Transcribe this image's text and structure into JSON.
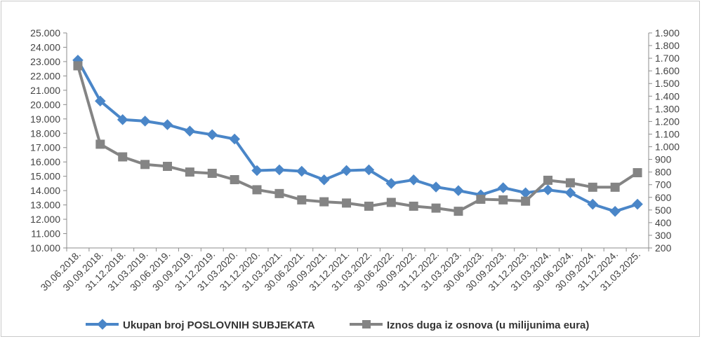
{
  "chart_data": {
    "type": "line",
    "title": "",
    "xlabel": "",
    "x": [
      "30.06.2018.",
      "30.09.2018.",
      "31.12.2018.",
      "31.03.2019.",
      "30.06.2019.",
      "30.09.2019.",
      "31.12.2019.",
      "31.03.2020.",
      "31.12.2020.",
      "31.03.2021.",
      "30.06.2021.",
      "30.09.2021.",
      "31.12.2021.",
      "31.03.2022.",
      "30.06.2022.",
      "30.09.2022.",
      "31.12.2022.",
      "31.03.2023.",
      "30.06.2023.",
      "30.09.2023.",
      "31.12.2023.",
      "31.03.2024.",
      "30.06.2024.",
      "30.09.2024.",
      "31.12.2024.",
      "31.03.2025."
    ],
    "y_left": {
      "ylim": [
        10000,
        25000
      ],
      "ticks": [
        "10.000",
        "11.000",
        "12.000",
        "13.000",
        "14.000",
        "15.000",
        "16.000",
        "17.000",
        "18.000",
        "19.000",
        "20.000",
        "21.000",
        "22.000",
        "23.000",
        "24.000",
        "25.000"
      ]
    },
    "y_right": {
      "ylim": [
        200,
        1900
      ],
      "ticks": [
        "200",
        "300",
        "400",
        "500",
        "600",
        "700",
        "800",
        "900",
        "1.000",
        "1.100",
        "1.200",
        "1.300",
        "1.400",
        "1.500",
        "1.600",
        "1.700",
        "1.800",
        "1.900"
      ]
    },
    "series": [
      {
        "name": "Ukupan broj POSLOVNIH SUBJEKATA",
        "axis": "left",
        "color": "#4a86c8",
        "marker": "diamond",
        "values": [
          23100,
          20250,
          18950,
          18850,
          18600,
          18150,
          17900,
          17600,
          15400,
          15450,
          15350,
          14750,
          15400,
          15450,
          14500,
          14750,
          14250,
          14000,
          13700,
          14200,
          13850,
          14050,
          13850,
          13050,
          12550,
          13050
        ]
      },
      {
        "name": "Iznos duga iz osnova (u milijunima eura)",
        "axis": "right",
        "color": "#848484",
        "marker": "square",
        "values": [
          1640,
          1020,
          920,
          860,
          845,
          800,
          790,
          740,
          660,
          630,
          580,
          565,
          555,
          530,
          560,
          530,
          515,
          490,
          585,
          580,
          570,
          735,
          715,
          680,
          680,
          795
        ]
      }
    ],
    "grid": false,
    "legend_position": "bottom"
  }
}
